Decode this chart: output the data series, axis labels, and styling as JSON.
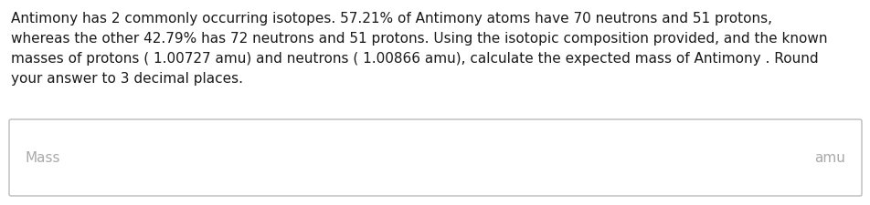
{
  "background_color": "#ffffff",
  "text_color": "#1a1a1a",
  "line1": "Antimony has 2 commonly occurring isotopes. 57.21% of Antimony atoms have 70 neutrons and 51 protons,",
  "line2": "whereas the other 42.79% has 72 neutrons and 51 protons. Using the isotopic composition provided, and the known",
  "line3": "masses of protons ( 1.00727 amu) and neutrons ( 1.00866 amu), calculate the expected mass of Antimony . Round",
  "line4": "your answer to 3 decimal places.",
  "box_label_left": "Mass",
  "box_label_right": "amu",
  "font_size_paragraph": 11.0,
  "font_size_box": 11.0,
  "box_edge_color": "#bbbbbb",
  "box_label_color": "#aaaaaa"
}
